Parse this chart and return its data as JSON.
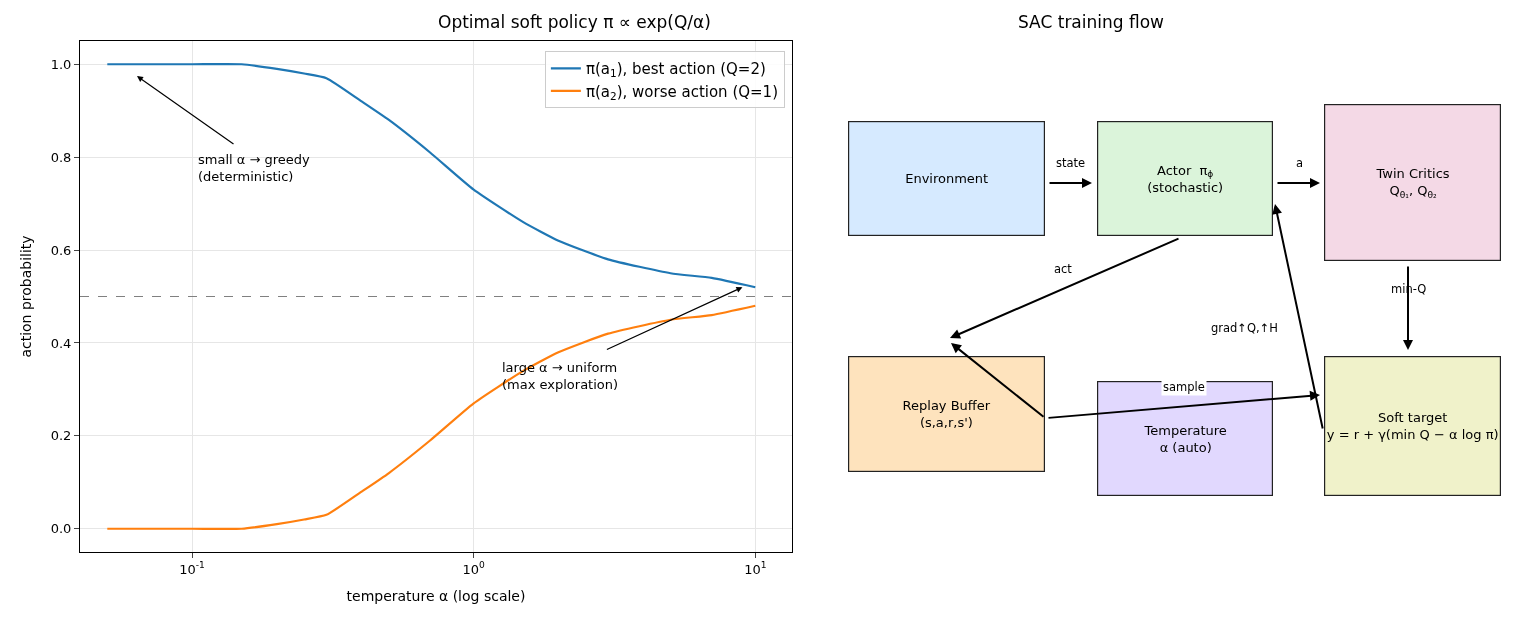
{
  "chart_data": [
    {
      "type": "line",
      "title": "Optimal soft policy π ∝ exp(Q/α)",
      "xlabel": "temperature α (log scale)",
      "ylabel": "action probability",
      "x": [
        0.05,
        0.1,
        0.15,
        0.2,
        0.25,
        0.3,
        0.4,
        0.5,
        0.7,
        1,
        1.5,
        2,
        3,
        5,
        7,
        10
      ],
      "series": [
        {
          "name": "π(a$_{1}$), best action (Q=2)",
          "color": "#1f77b4",
          "values": [
            1.0,
            1.0,
            1.0,
            0.99,
            0.98,
            0.97,
            0.92,
            0.88,
            0.81,
            0.73,
            0.66,
            0.62,
            0.58,
            0.55,
            0.54,
            0.52
          ]
        },
        {
          "name": "π(a$_{2}$), worse action (Q=1)",
          "color": "#ff7f0e",
          "values": [
            0.0,
            0.0,
            0.0,
            0.01,
            0.02,
            0.03,
            0.08,
            0.12,
            0.19,
            0.27,
            0.34,
            0.38,
            0.42,
            0.45,
            0.46,
            0.48
          ]
        }
      ],
      "log": "x",
      "xlim": [
        0.04,
        13.5
      ],
      "xticks": [
        {
          "value": 0.1,
          "label": "10$^{-1}$"
        },
        {
          "value": 1,
          "label": "10$^{0}$"
        },
        {
          "value": 10,
          "label": "10$^{1}$"
        }
      ],
      "ylim": [
        -0.05,
        1.05
      ],
      "yticks": [
        {
          "value": 0,
          "label": "0.0"
        },
        0.2,
        0.4,
        0.6,
        0.8,
        {
          "value": 1,
          "label": "1.0"
        }
      ],
      "grid": true,
      "legend": "top right",
      "marker": "none",
      "line_style": "solid",
      "ref_lines": [
        {
          "axis": "y",
          "value": 0.5,
          "color": "#808080",
          "line_style": "dashed"
        }
      ],
      "annotations": [
        "small α → greedy\n(deterministic)",
        {
          "text": "large α → uniform\n(max exploration)",
          "x": 9,
          "y": 0.52
        }
      ]
    },
    {
      "type": "other",
      "title": "SAC training flow",
      "annotations": [
        "Environment",
        "Actor  π$_{ϕ}$\n(stochastic)",
        "Twin Critics\nQ$_{θ₁}$, Q$_{θ₂}$",
        "Replay Buffer\n(s,a,r,s')",
        "Temperature\nα (auto)",
        "Soft target\ny = r + γ(min Q − α log π)",
        "state",
        "a",
        "act",
        "min-Q",
        "grad↑Q,↑H",
        "sample"
      ]
    }
  ]
}
